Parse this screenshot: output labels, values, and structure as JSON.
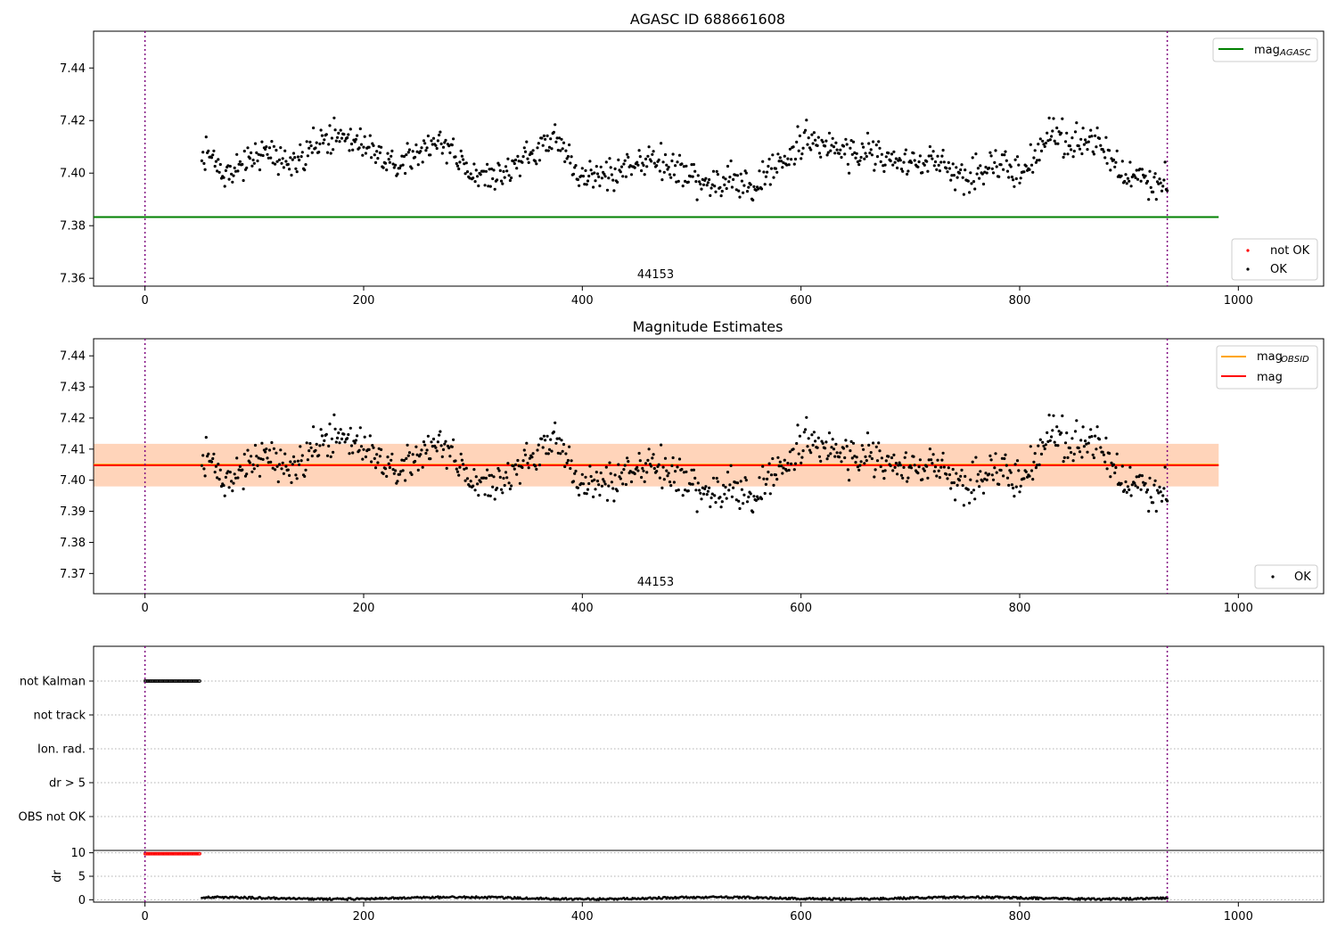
{
  "chart_data": [
    {
      "type": "scatter",
      "title": "AGASC ID 688661608",
      "xlim": [
        -47,
        1078
      ],
      "ylim": [
        7.357,
        7.454
      ],
      "xticks": [
        "0",
        "200",
        "400",
        "600",
        "800",
        "1000"
      ],
      "yticks": [
        "7.36",
        "7.38",
        "7.40",
        "7.42",
        "7.44"
      ],
      "mag_agasc": 7.3833,
      "hline_xrange": [
        -47,
        982
      ],
      "vlines": [
        0,
        935
      ],
      "obsid_label": "44153",
      "obsid_label_x": 467,
      "legend_top": [
        {
          "label": "mag",
          "sub": "AGASC",
          "color": "#008000"
        }
      ],
      "legend_bottom": [
        {
          "label": "not OK",
          "color": "#ff0000"
        },
        {
          "label": "OK",
          "color": "#000000"
        }
      ],
      "series": [
        {
          "name": "OK",
          "color": "#000000",
          "x_range": [
            52,
            935
          ],
          "anchors": [
            [
              52,
              7.408
            ],
            [
              80,
              7.4
            ],
            [
              110,
              7.409
            ],
            [
              130,
              7.403
            ],
            [
              150,
              7.409
            ],
            [
              170,
              7.414
            ],
            [
              200,
              7.412
            ],
            [
              230,
              7.404
            ],
            [
              255,
              7.409
            ],
            [
              270,
              7.412
            ],
            [
              295,
              7.401
            ],
            [
              320,
              7.397
            ],
            [
              350,
              7.406
            ],
            [
              375,
              7.413
            ],
            [
              395,
              7.4
            ],
            [
              420,
              7.399
            ],
            [
              445,
              7.402
            ],
            [
              470,
              7.406
            ],
            [
              495,
              7.399
            ],
            [
              515,
              7.394
            ],
            [
              535,
              7.397
            ],
            [
              555,
              7.393
            ],
            [
              580,
              7.404
            ],
            [
              605,
              7.412
            ],
            [
              635,
              7.408
            ],
            [
              660,
              7.409
            ],
            [
              690,
              7.403
            ],
            [
              720,
              7.405
            ],
            [
              750,
              7.399
            ],
            [
              775,
              7.404
            ],
            [
              800,
              7.399
            ],
            [
              825,
              7.414
            ],
            [
              850,
              7.41
            ],
            [
              870,
              7.413
            ],
            [
              895,
              7.399
            ],
            [
              915,
              7.396
            ],
            [
              935,
              7.397
            ]
          ],
          "noise": 0.0055
        }
      ]
    },
    {
      "type": "scatter",
      "title": "Magnitude Estimates",
      "xlim": [
        -47,
        1078
      ],
      "ylim": [
        7.3635,
        7.4455
      ],
      "xticks": [
        "0",
        "200",
        "400",
        "600",
        "800",
        "1000"
      ],
      "yticks": [
        "7.37",
        "7.38",
        "7.39",
        "7.40",
        "7.41",
        "7.42",
        "7.43",
        "7.44"
      ],
      "mag": 7.4048,
      "mag_obsid": 7.405,
      "band": [
        7.398,
        7.4117
      ],
      "hline_xrange": [
        -47,
        982
      ],
      "vlines": [
        0,
        935
      ],
      "obsid_label": "44153",
      "obsid_label_x": 467,
      "legend_top": [
        {
          "label": "mag",
          "sub": "OBSID",
          "color": "#ffa500"
        },
        {
          "label": "mag",
          "sub": "",
          "color": "#ff0000"
        }
      ],
      "legend_bottom": [
        {
          "label": "OK",
          "color": "#000000"
        }
      ],
      "series": [
        {
          "name": "OK",
          "color": "#000000",
          "x_range": [
            52,
            935
          ],
          "anchors": [
            [
              52,
              7.408
            ],
            [
              80,
              7.4
            ],
            [
              110,
              7.409
            ],
            [
              130,
              7.403
            ],
            [
              150,
              7.409
            ],
            [
              170,
              7.414
            ],
            [
              200,
              7.412
            ],
            [
              230,
              7.404
            ],
            [
              255,
              7.409
            ],
            [
              270,
              7.412
            ],
            [
              295,
              7.401
            ],
            [
              320,
              7.397
            ],
            [
              350,
              7.406
            ],
            [
              375,
              7.413
            ],
            [
              395,
              7.4
            ],
            [
              420,
              7.399
            ],
            [
              445,
              7.402
            ],
            [
              470,
              7.406
            ],
            [
              495,
              7.399
            ],
            [
              515,
              7.394
            ],
            [
              535,
              7.397
            ],
            [
              555,
              7.393
            ],
            [
              580,
              7.404
            ],
            [
              605,
              7.412
            ],
            [
              635,
              7.408
            ],
            [
              660,
              7.409
            ],
            [
              690,
              7.403
            ],
            [
              720,
              7.405
            ],
            [
              750,
              7.399
            ],
            [
              775,
              7.404
            ],
            [
              800,
              7.399
            ],
            [
              825,
              7.414
            ],
            [
              850,
              7.41
            ],
            [
              870,
              7.413
            ],
            [
              895,
              7.399
            ],
            [
              915,
              7.396
            ],
            [
              935,
              7.397
            ]
          ],
          "noise": 0.0055
        }
      ]
    },
    {
      "type": "scatter",
      "title": "",
      "xlim": [
        -47,
        1078
      ],
      "xticks": [
        "0",
        "200",
        "400",
        "600",
        "800",
        "1000"
      ],
      "flag_labels": [
        "not Kalman",
        "not track",
        "Ion. rad.",
        "dr > 5",
        "OBS not OK"
      ],
      "flag_points": {
        "not Kalman": [
          0,
          50
        ]
      },
      "vlines": [
        0,
        935
      ],
      "dr": {
        "ylabel": "dr",
        "ylim": [
          -0.5,
          10.5
        ],
        "yticks": [
          "0",
          "5",
          "10"
        ],
        "red_points": {
          "x_range": [
            0,
            50
          ],
          "y": 9.8
        },
        "black_points": {
          "x_range": [
            52,
            935
          ],
          "y_base": 0.35,
          "y_amp": 0.4
        }
      }
    }
  ]
}
